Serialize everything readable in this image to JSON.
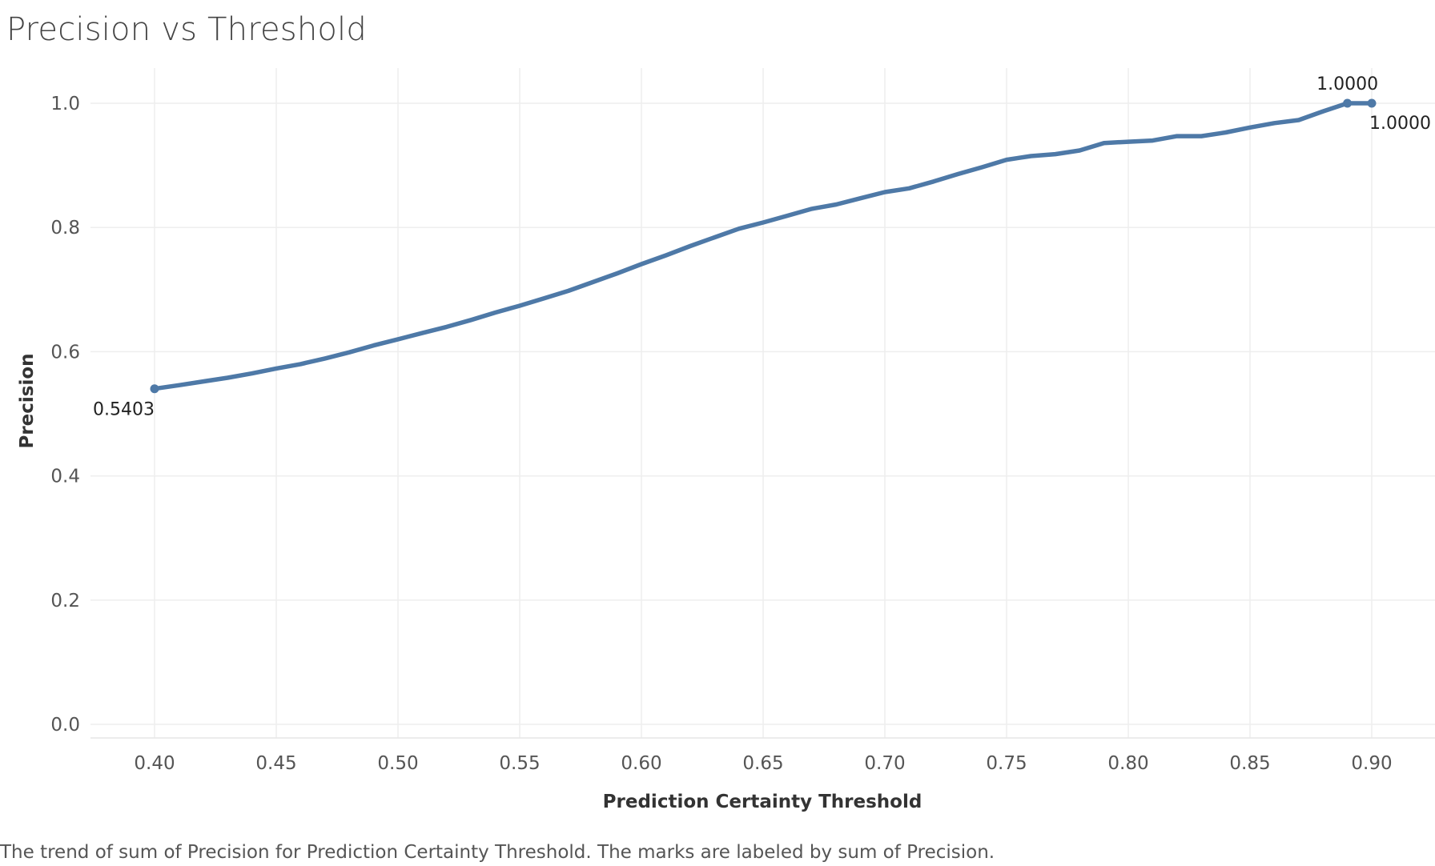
{
  "title": "Precision vs Threshold",
  "caption": "The trend of sum of Precision for Prediction Certainty Threshold.  The marks are labeled by sum of Precision.",
  "colors": {
    "series": "#4e79a7",
    "grid": "#eeeeee"
  },
  "chart_data": {
    "type": "line",
    "xlabel": "Prediction Certainty Threshold",
    "ylabel": "Precision",
    "xlim": [
      0.375,
      0.9
    ],
    "ylim": [
      0.0,
      1.05
    ],
    "x_ticks": [
      "0.40",
      "0.45",
      "0.50",
      "0.55",
      "0.60",
      "0.65",
      "0.70",
      "0.75",
      "0.80",
      "0.85",
      "0.90"
    ],
    "y_ticks": [
      "0.0",
      "0.2",
      "0.4",
      "0.6",
      "0.8",
      "1.0"
    ],
    "grid": true,
    "legend": "none",
    "series": [
      {
        "x": [
          0.4,
          0.41,
          0.42,
          0.43,
          0.44,
          0.45,
          0.46,
          0.47,
          0.48,
          0.49,
          0.5,
          0.51,
          0.52,
          0.53,
          0.54,
          0.55,
          0.56,
          0.57,
          0.58,
          0.59,
          0.6,
          0.61,
          0.62,
          0.63,
          0.64,
          0.65,
          0.66,
          0.67,
          0.68,
          0.69,
          0.7,
          0.71,
          0.72,
          0.73,
          0.74,
          0.75,
          0.76,
          0.77,
          0.78,
          0.79,
          0.8,
          0.81,
          0.82,
          0.83,
          0.84,
          0.85,
          0.86,
          0.87,
          0.88,
          0.89,
          0.9
        ],
        "y": [
          0.5403,
          0.546,
          0.552,
          0.558,
          0.565,
          0.573,
          0.58,
          0.589,
          0.599,
          0.61,
          0.62,
          0.63,
          0.64,
          0.651,
          0.663,
          0.674,
          0.686,
          0.698,
          0.712,
          0.726,
          0.741,
          0.755,
          0.77,
          0.784,
          0.798,
          0.808,
          0.819,
          0.83,
          0.837,
          0.847,
          0.857,
          0.863,
          0.874,
          0.886,
          0.897,
          0.909,
          0.915,
          0.918,
          0.924,
          0.936,
          0.938,
          0.94,
          0.947,
          0.947,
          0.953,
          0.961,
          0.968,
          0.973,
          0.987,
          1.0,
          1.0
        ]
      }
    ],
    "point_labels": [
      {
        "x": 0.4,
        "y": 0.5403,
        "text": "0.5403",
        "position": "below-left"
      },
      {
        "x": 0.89,
        "y": 1.0,
        "text": "1.0000",
        "position": "above"
      },
      {
        "x": 0.9,
        "y": 1.0,
        "text": "1.0000",
        "position": "below-right"
      }
    ]
  }
}
